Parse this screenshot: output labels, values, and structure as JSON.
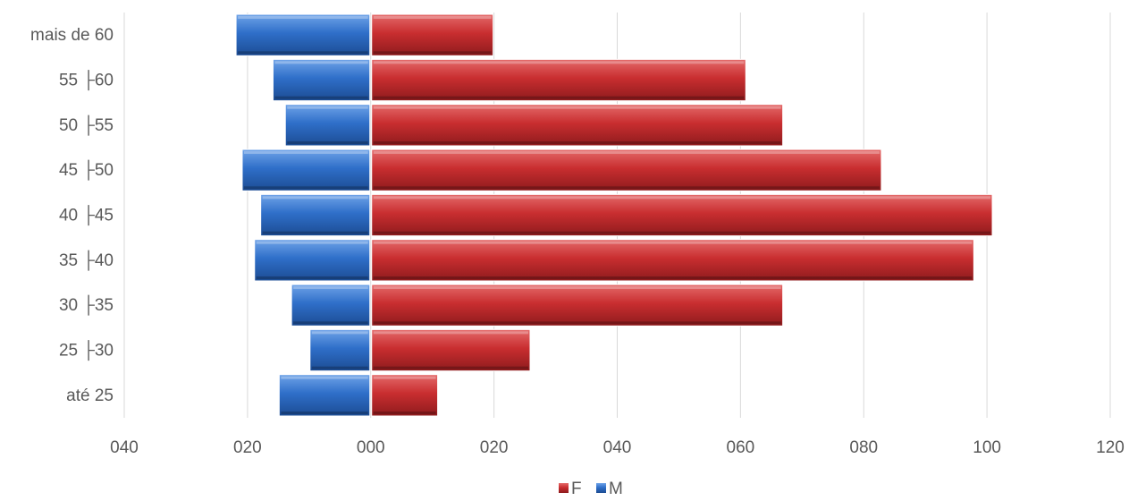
{
  "chart_data": {
    "type": "bar",
    "orientation": "horizontal",
    "stacked": true,
    "categories": [
      "até 25",
      "25 ├30",
      "30 ├35",
      "35 ├40",
      "40 ├45",
      "45 ├50",
      "50 ├55",
      "55 ├60",
      "mais de 60"
    ],
    "series": [
      {
        "name": "F",
        "color": "#c0282c",
        "values": [
          11,
          26,
          67,
          98,
          101,
          83,
          67,
          61,
          20
        ]
      },
      {
        "name": "M",
        "color": "#2f6fc9",
        "values": [
          -15,
          -10,
          -13,
          -19,
          -18,
          -21,
          -14,
          -16,
          -22
        ]
      }
    ],
    "xlim": [
      -40,
      120
    ],
    "xticks": [
      -40,
      -20,
      0,
      20,
      40,
      60,
      80,
      100,
      120
    ],
    "xtick_labels": [
      "040",
      "020",
      "000",
      "020",
      "040",
      "060",
      "080",
      "100",
      "120"
    ],
    "grid": "vertical",
    "legend": "bottom-center",
    "title": "",
    "xlabel": "",
    "ylabel": ""
  }
}
